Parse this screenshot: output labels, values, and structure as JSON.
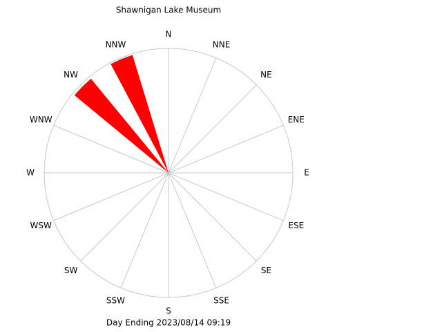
{
  "chart_data": {
    "type": "windrose",
    "title": "Shawnigan Lake Museum",
    "footer": "Day Ending 2023/08/14 09:19",
    "categories": [
      "N",
      "NNE",
      "NE",
      "ENE",
      "E",
      "ESE",
      "SE",
      "SSE",
      "S",
      "SSW",
      "SW",
      "WSW",
      "W",
      "WNW",
      "NW",
      "NNW"
    ],
    "values": [
      0,
      0,
      0,
      0,
      0,
      0,
      0,
      0,
      0,
      0,
      0,
      0,
      0,
      0,
      98,
      99
    ],
    "rlim": [
      0,
      100
    ],
    "color": "#ff0000"
  }
}
